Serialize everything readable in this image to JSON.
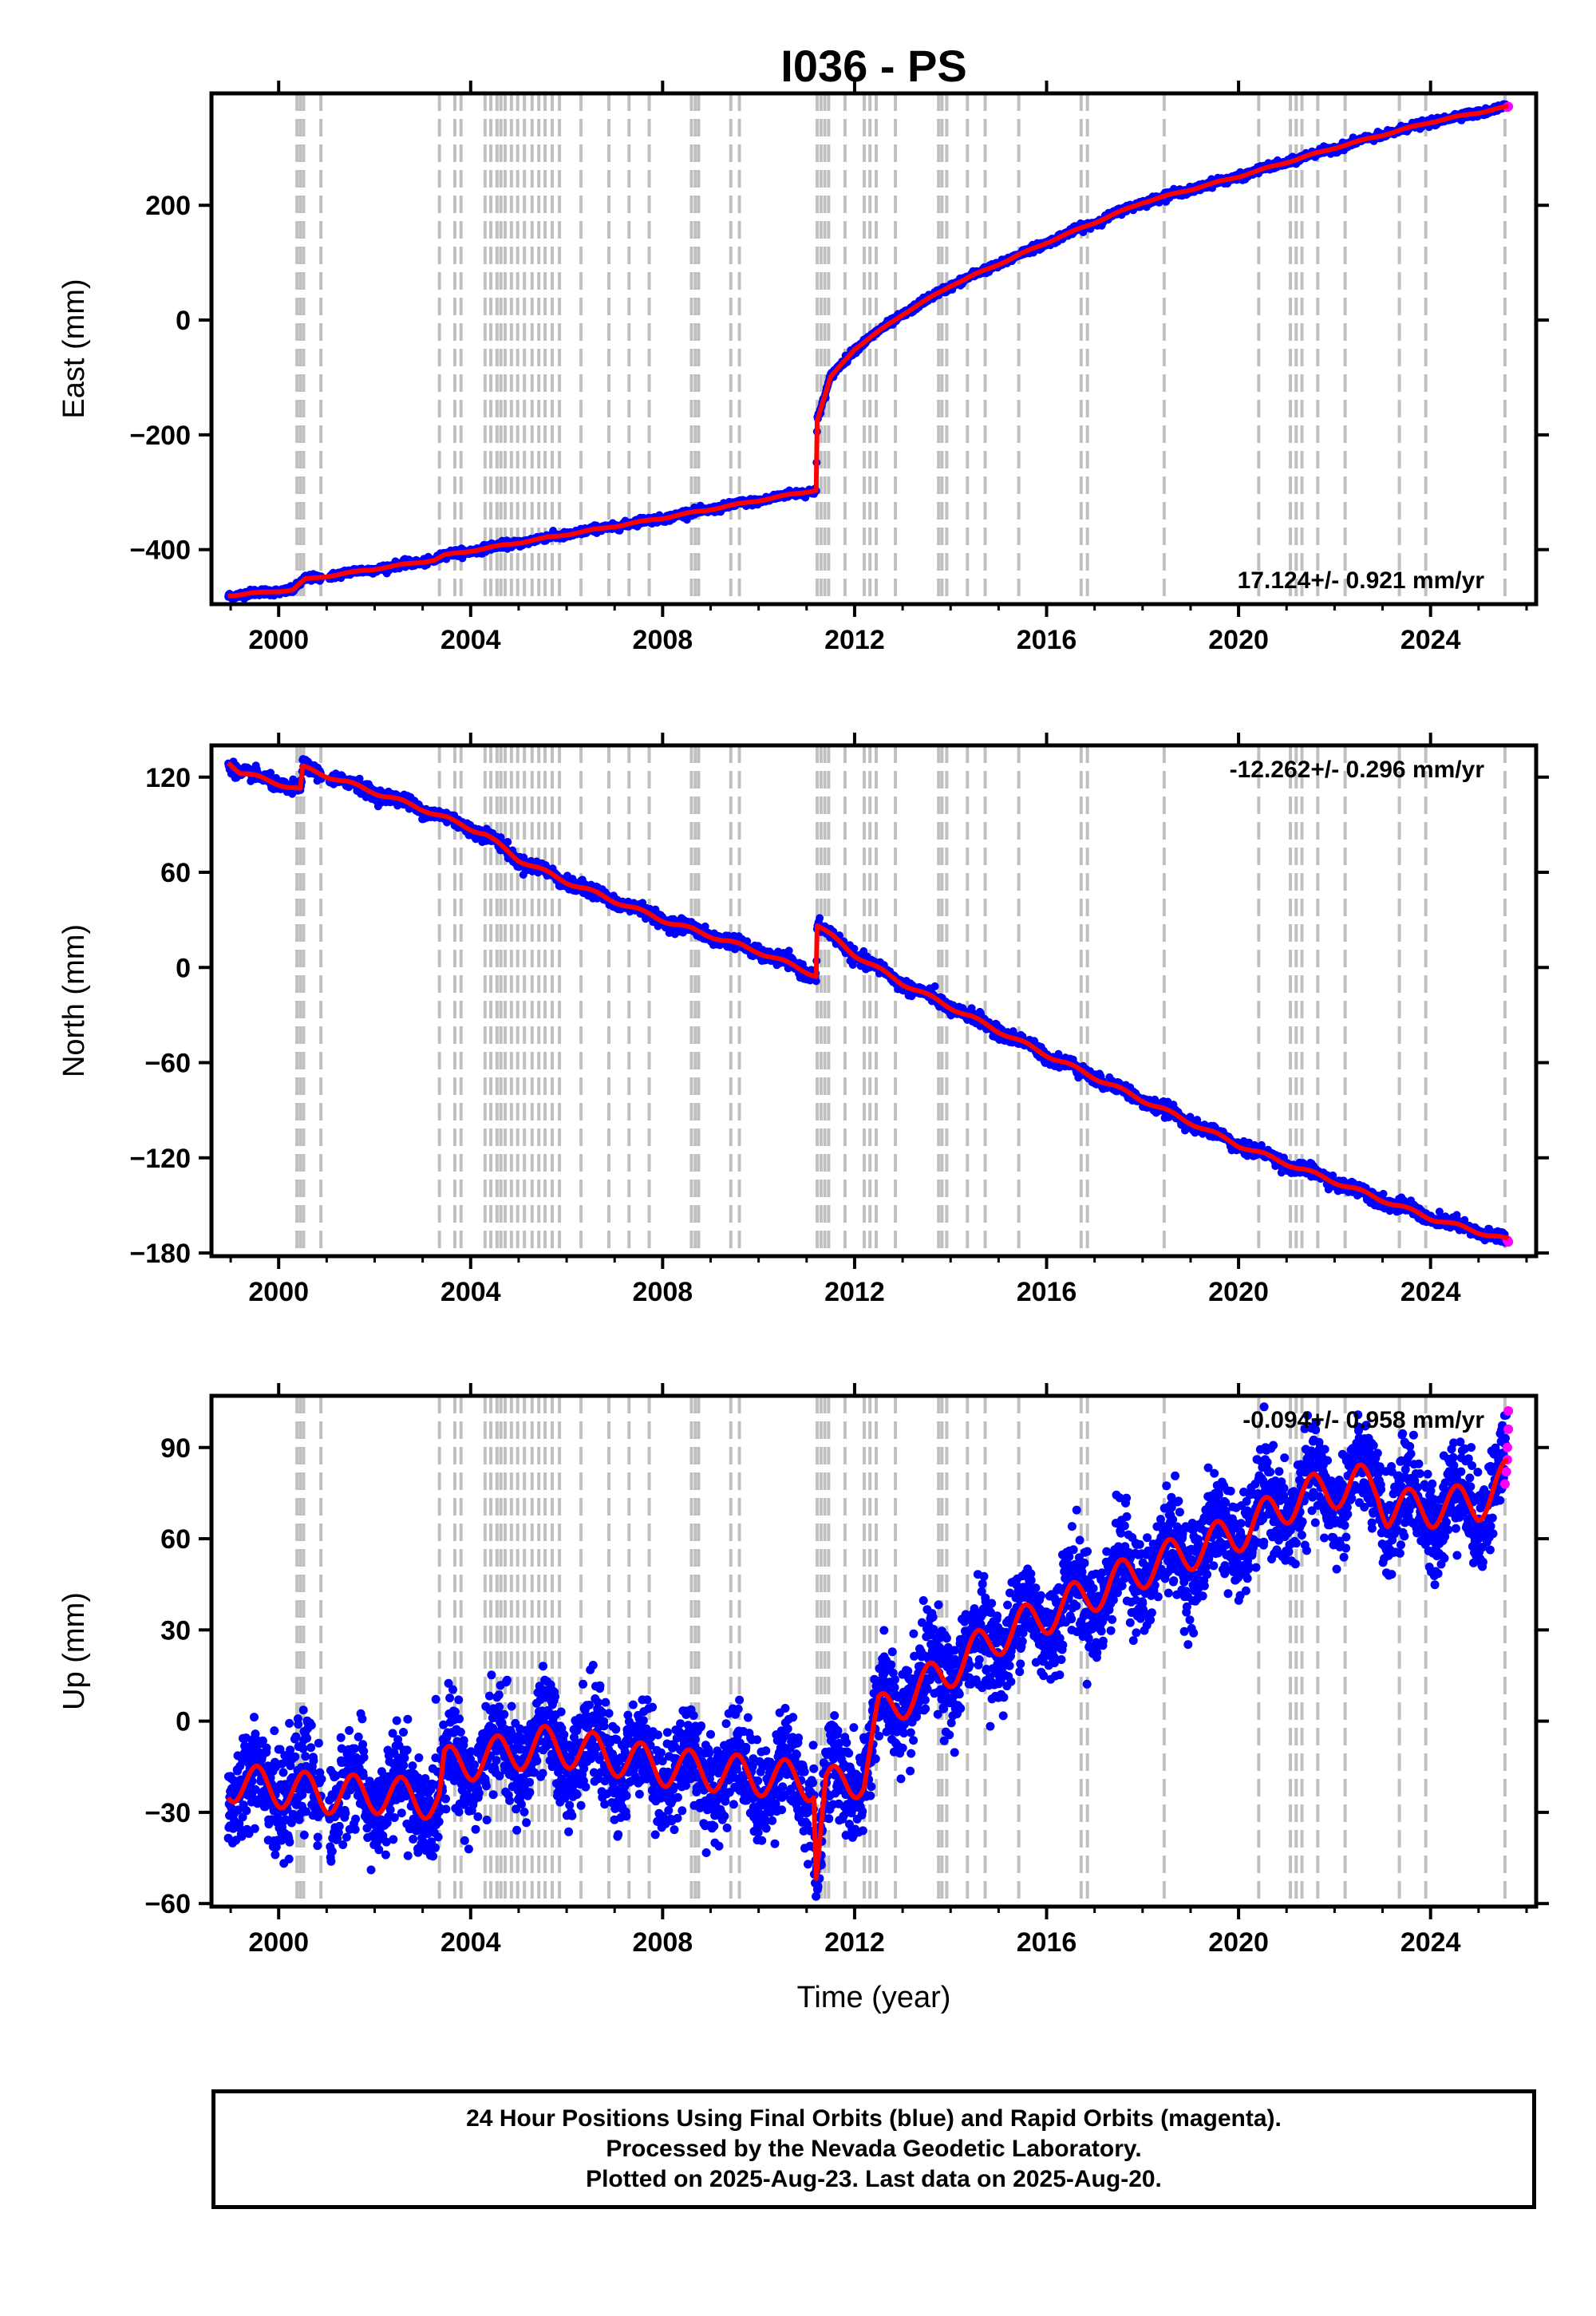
{
  "title": "I036 - PS",
  "colors": {
    "final": "#0000ff",
    "rapid": "#ff00ff",
    "model": "#ff0000",
    "events": "#c0c0c0",
    "frame": "#000000"
  },
  "xlabel": "Time (year)",
  "xticks": [
    2000,
    2004,
    2008,
    2012,
    2016,
    2020,
    2024
  ],
  "xlim": [
    1998.6,
    2026.2
  ],
  "event_lines": [
    2000.38,
    2000.45,
    2000.52,
    2000.88,
    2003.35,
    2003.67,
    2003.8,
    2004.3,
    2004.42,
    2004.55,
    2004.63,
    2004.72,
    2004.85,
    2004.98,
    2005.12,
    2005.28,
    2005.42,
    2005.55,
    2005.7,
    2005.85,
    2006.3,
    2006.88,
    2007.3,
    2007.72,
    2008.6,
    2008.68,
    2008.75,
    2009.42,
    2009.6,
    2011.22,
    2011.3,
    2011.38,
    2011.46,
    2011.8,
    2012.2,
    2012.32,
    2012.45,
    2012.85,
    2013.75,
    2013.82,
    2013.92,
    2014.35,
    2014.72,
    2015.42,
    2016.72,
    2016.85,
    2018.45,
    2020.42,
    2021.08,
    2021.2,
    2021.32,
    2021.65,
    2022.22,
    2023.35,
    2023.9,
    2025.55
  ],
  "chart_data": [
    {
      "type": "scatter",
      "name": "east",
      "ylabel": "East (mm)",
      "ylim": [
        -495,
        395
      ],
      "yticks": [
        -400,
        -200,
        0,
        200
      ],
      "rate_label": "17.124+/- 0.921 mm/yr",
      "rate_position": "bottom-right",
      "trend": [
        [
          1998.95,
          -480
        ],
        [
          2000.3,
          -470
        ],
        [
          2000.55,
          -452
        ],
        [
          2003.25,
          -418
        ],
        [
          2003.45,
          -410
        ],
        [
          2008,
          -345
        ],
        [
          2011.2,
          -296
        ],
        [
          2011.22,
          -175
        ],
        [
          2011.5,
          -100
        ],
        [
          2012,
          -50
        ],
        [
          2013,
          10
        ],
        [
          2014,
          60
        ],
        [
          2016,
          135
        ],
        [
          2018,
          205
        ],
        [
          2020,
          250
        ],
        [
          2022,
          300
        ],
        [
          2024,
          345
        ],
        [
          2025.62,
          372
        ]
      ],
      "scatter_mm": 3,
      "annual_amp_mm": 1.5,
      "rapid": [
        [
          2025.6,
          371
        ],
        [
          2025.62,
          372
        ]
      ]
    },
    {
      "type": "scatter",
      "name": "north",
      "ylabel": "North (mm)",
      "ylim": [
        -182,
        140
      ],
      "yticks": [
        -180,
        -120,
        -60,
        0,
        60,
        120
      ],
      "rate_label": "-12.262+/- 0.296 mm/yr",
      "rate_position": "top-right",
      "trend": [
        [
          1998.95,
          130
        ],
        [
          1999.2,
          123
        ],
        [
          2000.45,
          112
        ],
        [
          2000.5,
          126
        ],
        [
          2001,
          121
        ],
        [
          2003,
          100
        ],
        [
          2004.3,
          84
        ],
        [
          2005,
          68
        ],
        [
          2006,
          54
        ],
        [
          2008,
          30
        ],
        [
          2010,
          10
        ],
        [
          2011.2,
          -5
        ],
        [
          2011.22,
          27
        ],
        [
          2012,
          8
        ],
        [
          2013,
          -10
        ],
        [
          2016,
          -55
        ],
        [
          2020,
          -112
        ],
        [
          2024,
          -158
        ],
        [
          2025.62,
          -172
        ]
      ],
      "scatter_mm": 2,
      "annual_amp_mm": 1.5,
      "rapid": [
        [
          2025.6,
          -172
        ],
        [
          2025.62,
          -173
        ]
      ]
    },
    {
      "type": "scatter",
      "name": "up",
      "ylabel": "Up (mm)",
      "ylim": [
        -61,
        107
      ],
      "yticks": [
        -60,
        -30,
        0,
        30,
        60,
        90
      ],
      "rate_label": "-0.094+/- 0.958 mm/yr",
      "rate_position": "top-right",
      "trend": [
        [
          1998.95,
          -20
        ],
        [
          2001,
          -24
        ],
        [
          2002,
          -24
        ],
        [
          2003.35,
          -26
        ],
        [
          2003.45,
          -15
        ],
        [
          2005.5,
          -8
        ],
        [
          2006.5,
          -10
        ],
        [
          2008,
          -15
        ],
        [
          2011.15,
          -20
        ],
        [
          2011.2,
          -48
        ],
        [
          2011.4,
          -22
        ],
        [
          2012.2,
          -18
        ],
        [
          2012.5,
          2
        ],
        [
          2013.5,
          12
        ],
        [
          2015,
          28
        ],
        [
          2016,
          35
        ],
        [
          2018,
          50
        ],
        [
          2020,
          62
        ],
        [
          2021.3,
          74
        ],
        [
          2022.5,
          78
        ],
        [
          2022.9,
          77
        ],
        [
          2023.1,
          70
        ],
        [
          2024,
          70
        ],
        [
          2025,
          72
        ],
        [
          2025.62,
          80
        ]
      ],
      "scatter_mm": 8,
      "annual_amp_mm": 8,
      "rapid": [
        [
          2025.55,
          78
        ],
        [
          2025.58,
          82
        ],
        [
          2025.6,
          86
        ],
        [
          2025.6,
          90
        ],
        [
          2025.62,
          96
        ],
        [
          2025.62,
          102
        ]
      ]
    }
  ],
  "footer": {
    "line1": "24 Hour Positions Using Final Orbits (blue) and Rapid Orbits (magenta).",
    "line2": "Processed by the Nevada Geodetic Laboratory.",
    "line3": "Plotted on 2025-Aug-23. Last data on 2025-Aug-20."
  }
}
